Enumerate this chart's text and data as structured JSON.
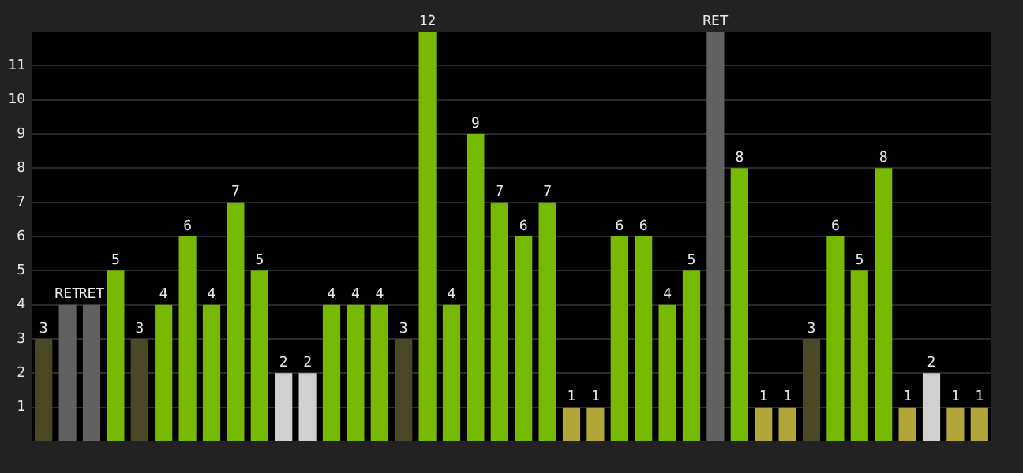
{
  "chart_data": {
    "type": "bar",
    "categories": [
      null,
      null,
      null,
      null,
      null,
      null,
      null,
      null,
      null,
      null,
      null,
      null,
      null,
      null,
      null,
      null,
      null,
      null,
      null,
      null,
      null,
      null,
      null,
      null,
      null,
      null,
      null,
      null,
      null,
      null,
      null,
      null,
      null,
      null,
      null,
      null,
      null,
      null,
      null,
      null
    ],
    "values": [
      3,
      4,
      4,
      5,
      3,
      4,
      6,
      4,
      7,
      5,
      2,
      2,
      4,
      4,
      4,
      3,
      12,
      4,
      9,
      7,
      6,
      7,
      1,
      1,
      6,
      6,
      4,
      5,
      12,
      8,
      1,
      1,
      3,
      6,
      5,
      8,
      1,
      2,
      1,
      1
    ],
    "value_labels": [
      "3",
      "RET",
      "RET",
      "5",
      "3",
      "4",
      "6",
      "4",
      "7",
      "5",
      "2",
      "2",
      "4",
      "4",
      "4",
      "3",
      "12",
      "4",
      "9",
      "7",
      "6",
      "7",
      "1",
      "1",
      "6",
      "6",
      "4",
      "5",
      "RET",
      "8",
      "1",
      "1",
      "3",
      "6",
      "5",
      "8",
      "1",
      "2",
      "1",
      "1"
    ],
    "colors": [
      "#4a4825",
      "#616161",
      "#616161",
      "#76b900",
      "#4a4825",
      "#76b900",
      "#76b900",
      "#76b900",
      "#76b900",
      "#76b900",
      "#d0d0d0",
      "#d0d0d0",
      "#76b900",
      "#76b900",
      "#76b900",
      "#4a4825",
      "#76b900",
      "#76b900",
      "#76b900",
      "#76b900",
      "#76b900",
      "#76b900",
      "#b0a63a",
      "#b0a63a",
      "#76b900",
      "#76b900",
      "#76b900",
      "#76b900",
      "#616161",
      "#76b900",
      "#b0a63a",
      "#b0a63a",
      "#4a4825",
      "#76b900",
      "#76b900",
      "#76b900",
      "#b0a63a",
      "#d0d0d0",
      "#b0a63a",
      "#b0a63a"
    ],
    "ylim": [
      0,
      12
    ],
    "yticks": [
      1,
      2,
      3,
      4,
      5,
      6,
      7,
      8,
      9,
      10,
      11
    ],
    "grid": "y",
    "legend": false
  }
}
